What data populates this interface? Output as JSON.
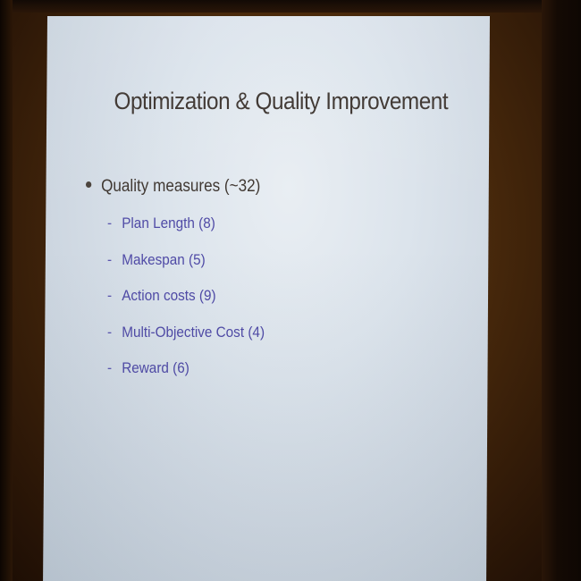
{
  "slide": {
    "title": "Optimization & Quality Improvement",
    "bullet": "Quality measures (~32)",
    "sub_items": [
      "Plan Length (8)",
      "Makespan (5)",
      "Action costs (9)",
      "Multi-Objective Cost (4)",
      "Reward (6)"
    ]
  },
  "colors": {
    "screen": "#dce4ec",
    "title_text": "#3d3530",
    "sub_item_text": "#4f4aa6",
    "background": "#4a2a0c"
  }
}
